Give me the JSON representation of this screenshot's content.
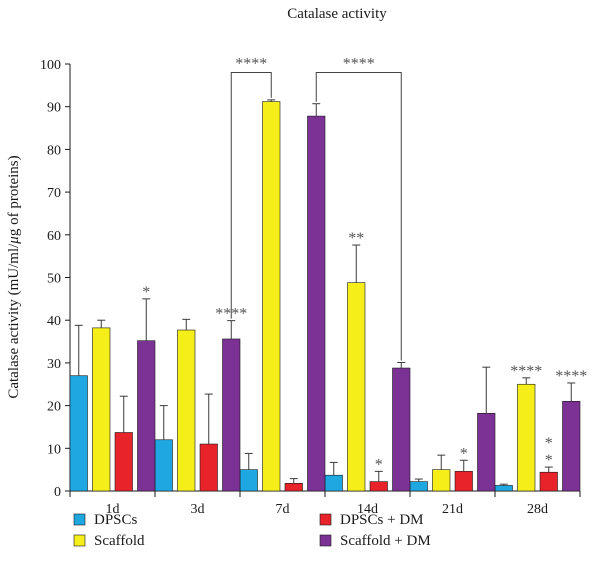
{
  "chart_data": {
    "type": "bar",
    "title": "Catalase activity",
    "ylabel_parts": [
      "Catalase activity (mU/ml/",
      "μ",
      "g of proteins)"
    ],
    "ylim": [
      0,
      100
    ],
    "yticks": [
      0,
      10,
      20,
      30,
      40,
      50,
      60,
      70,
      80,
      90,
      100
    ],
    "categories": [
      "1d",
      "3d",
      "7d",
      "14d",
      "21d",
      "28d"
    ],
    "series": [
      {
        "name": "DPSCs",
        "color": "#1ea7e1",
        "values": [
          27,
          12,
          5,
          3.7,
          2.2,
          1.3
        ],
        "errors": [
          11.8,
          8,
          3.8,
          3,
          0.6,
          0.3
        ],
        "significance": [
          "",
          "",
          "",
          "",
          "",
          ""
        ]
      },
      {
        "name": "Scaffold",
        "color": "#f5ee19",
        "values": [
          38.2,
          37.7,
          91.2,
          48.8,
          5,
          25
        ],
        "errors": [
          1.8,
          2.5,
          0.4,
          8.8,
          3.4,
          1.5
        ],
        "significance": [
          "",
          "",
          "",
          "**",
          "",
          "****"
        ]
      },
      {
        "name": "DPSCs + DM",
        "color": "#e8232a",
        "values": [
          13.7,
          11,
          1.8,
          2.2,
          4.6,
          4.4
        ],
        "errors": [
          8.5,
          11.7,
          1.1,
          2.4,
          2.6,
          1.2
        ],
        "significance": [
          "",
          "",
          "",
          "*",
          "*",
          "*"
        ]
      },
      {
        "name": "Scaffold + DM",
        "color": "#7b3294",
        "values": [
          35.2,
          35.6,
          87.8,
          28.8,
          18.2,
          21
        ],
        "errors": [
          9.8,
          4.3,
          2.9,
          1.3,
          10.8,
          4.3
        ],
        "significance": [
          "*",
          "****",
          "",
          "",
          "",
          "****"
        ]
      }
    ],
    "extra_annotations": [
      {
        "category": "28d",
        "series": "DPSCs + DM",
        "text": "*"
      }
    ],
    "brackets": [
      {
        "from": {
          "category": "3d",
          "series": "Scaffold + DM"
        },
        "to": {
          "category": "7d",
          "series": "Scaffold"
        },
        "level": 98,
        "text": "****"
      },
      {
        "from": {
          "category": "7d",
          "series": "Scaffold + DM"
        },
        "to": {
          "category": "14d",
          "series": "Scaffold + DM"
        },
        "level": 98,
        "text": "****"
      }
    ],
    "legend": {
      "placement": "bottom",
      "columns": 2,
      "entries": [
        "DPSCs",
        "DPSCs + DM",
        "Scaffold",
        "Scaffold + DM"
      ]
    }
  }
}
